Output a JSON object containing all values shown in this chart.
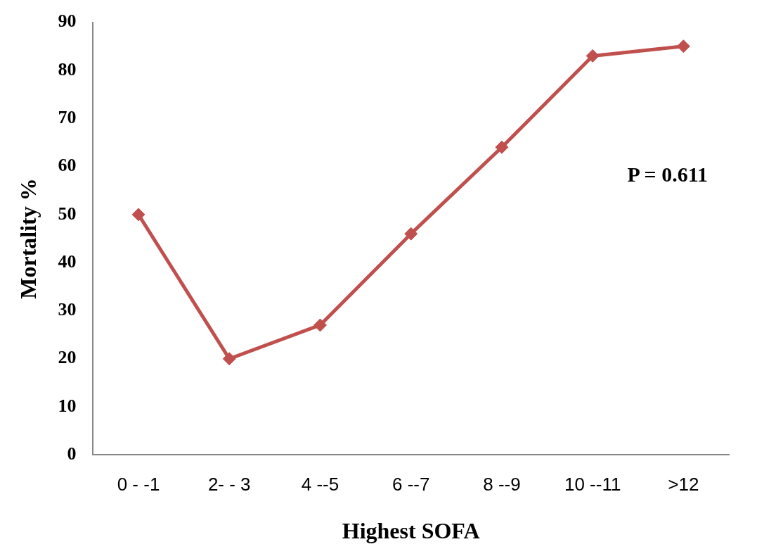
{
  "chart_data": {
    "type": "line",
    "xlabel": "Highest SOFA",
    "ylabel": "Mortality %",
    "categories": [
      "0 - -1",
      "2- - 3",
      "4 --5",
      "6 --7",
      "8 --9",
      "10 --11",
      ">12"
    ],
    "series": [
      {
        "color": "#c0504d",
        "values": [
          50,
          20,
          27,
          46,
          64,
          83,
          85
        ]
      }
    ],
    "ylim": [
      0,
      90
    ],
    "yticks": [
      0,
      10,
      20,
      30,
      40,
      50,
      60,
      70,
      80,
      90
    ],
    "grid": false,
    "legend": false,
    "marker": "diamond",
    "line_style": "solid",
    "annotations": [
      "P = 0.611"
    ]
  }
}
